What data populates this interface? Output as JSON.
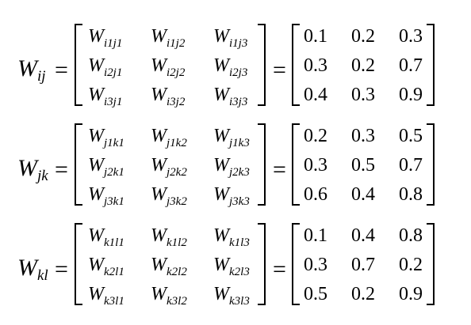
{
  "equations": [
    {
      "lhs_base": "W",
      "lhs_sub": "ij",
      "symbol_rows": [
        [
          {
            "b": "W",
            "s": "i1j1"
          },
          {
            "b": "W",
            "s": "i1j2"
          },
          {
            "b": "W",
            "s": "i1j3"
          }
        ],
        [
          {
            "b": "W",
            "s": "i2j1"
          },
          {
            "b": "W",
            "s": "i2j2"
          },
          {
            "b": "W",
            "s": "i2j3"
          }
        ],
        [
          {
            "b": "W",
            "s": "i3j1"
          },
          {
            "b": "W",
            "s": "i3j2"
          },
          {
            "b": "W",
            "s": "i3j3"
          }
        ]
      ],
      "value_rows": [
        [
          "0.1",
          "0.2",
          "0.3"
        ],
        [
          "0.3",
          "0.2",
          "0.7"
        ],
        [
          "0.4",
          "0.3",
          "0.9"
        ]
      ]
    },
    {
      "lhs_base": "W",
      "lhs_sub": "jk",
      "symbol_rows": [
        [
          {
            "b": "W",
            "s": "j1k1"
          },
          {
            "b": "W",
            "s": "j1k2"
          },
          {
            "b": "W",
            "s": "j1k3"
          }
        ],
        [
          {
            "b": "W",
            "s": "j2k1"
          },
          {
            "b": "W",
            "s": "j2k2"
          },
          {
            "b": "W",
            "s": "j2k3"
          }
        ],
        [
          {
            "b": "W",
            "s": "j3k1"
          },
          {
            "b": "W",
            "s": "j3k2"
          },
          {
            "b": "W",
            "s": "j3k3"
          }
        ]
      ],
      "value_rows": [
        [
          "0.2",
          "0.3",
          "0.5"
        ],
        [
          "0.3",
          "0.5",
          "0.7"
        ],
        [
          "0.6",
          "0.4",
          "0.8"
        ]
      ]
    },
    {
      "lhs_base": "W",
      "lhs_sub": "kl",
      "symbol_rows": [
        [
          {
            "b": "W",
            "s": "k1l1"
          },
          {
            "b": "W",
            "s": "k1l2"
          },
          {
            "b": "W",
            "s": "k1l3"
          }
        ],
        [
          {
            "b": "W",
            "s": "k2l1"
          },
          {
            "b": "W",
            "s": "k2l2"
          },
          {
            "b": "W",
            "s": "k2l3"
          }
        ],
        [
          {
            "b": "W",
            "s": "k3l1"
          },
          {
            "b": "W",
            "s": "k3l2"
          },
          {
            "b": "W",
            "s": "k3l3"
          }
        ]
      ],
      "value_rows": [
        [
          "0.1",
          "0.4",
          "0.8"
        ],
        [
          "0.3",
          "0.7",
          "0.2"
        ],
        [
          "0.5",
          "0.2",
          "0.9"
        ]
      ]
    }
  ],
  "equals_sign": "="
}
